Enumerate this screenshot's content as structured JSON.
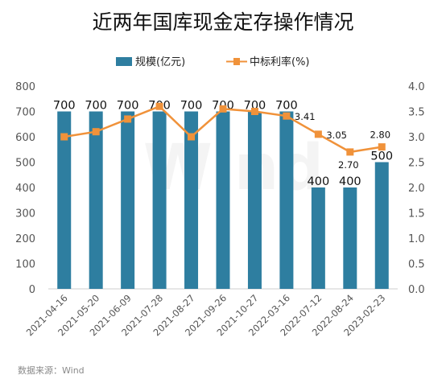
{
  "title": "近两年国库现金定存操作情况",
  "source": "数据来源：Wind",
  "chart_data": {
    "type": "bar",
    "categories": [
      "2021-04-16",
      "2021-05-20",
      "2021-06-09",
      "2021-07-28",
      "2021-08-27",
      "2021-09-26",
      "2021-10-27",
      "2022-03-16",
      "2022-07-12",
      "2022-08-24",
      "2023-02-23"
    ],
    "series": [
      {
        "name": "规模(亿元)",
        "type": "bar",
        "axis": "left",
        "color": "#2e7ea0",
        "values": [
          700,
          700,
          700,
          700,
          700,
          700,
          700,
          700,
          400,
          400,
          500
        ],
        "labels": [
          "700",
          "700",
          "700",
          "700",
          "700",
          "700",
          "700",
          "700",
          "400",
          "400",
          "500"
        ]
      },
      {
        "name": "中标利率(%)",
        "type": "line",
        "axis": "right",
        "color": "#f0923a",
        "values": [
          3.0,
          3.1,
          3.35,
          3.6,
          3.0,
          3.55,
          3.5,
          3.41,
          3.05,
          2.7,
          2.8
        ],
        "labels": [
          "",
          "",
          "",
          "",
          "",
          "",
          "",
          "3.41",
          "3.05",
          "2.70",
          "2.80"
        ]
      }
    ],
    "y_left": {
      "range": [
        0,
        800
      ],
      "ticks": [
        "0",
        "100",
        "200",
        "300",
        "400",
        "500",
        "600",
        "700",
        "800"
      ]
    },
    "y_right": {
      "range": [
        0,
        4.0
      ],
      "ticks": [
        "0.0",
        "0.5",
        "1.0",
        "1.5",
        "2.0",
        "2.5",
        "3.0",
        "3.5",
        "4.0"
      ]
    },
    "grid": false,
    "legend_position": "top"
  }
}
